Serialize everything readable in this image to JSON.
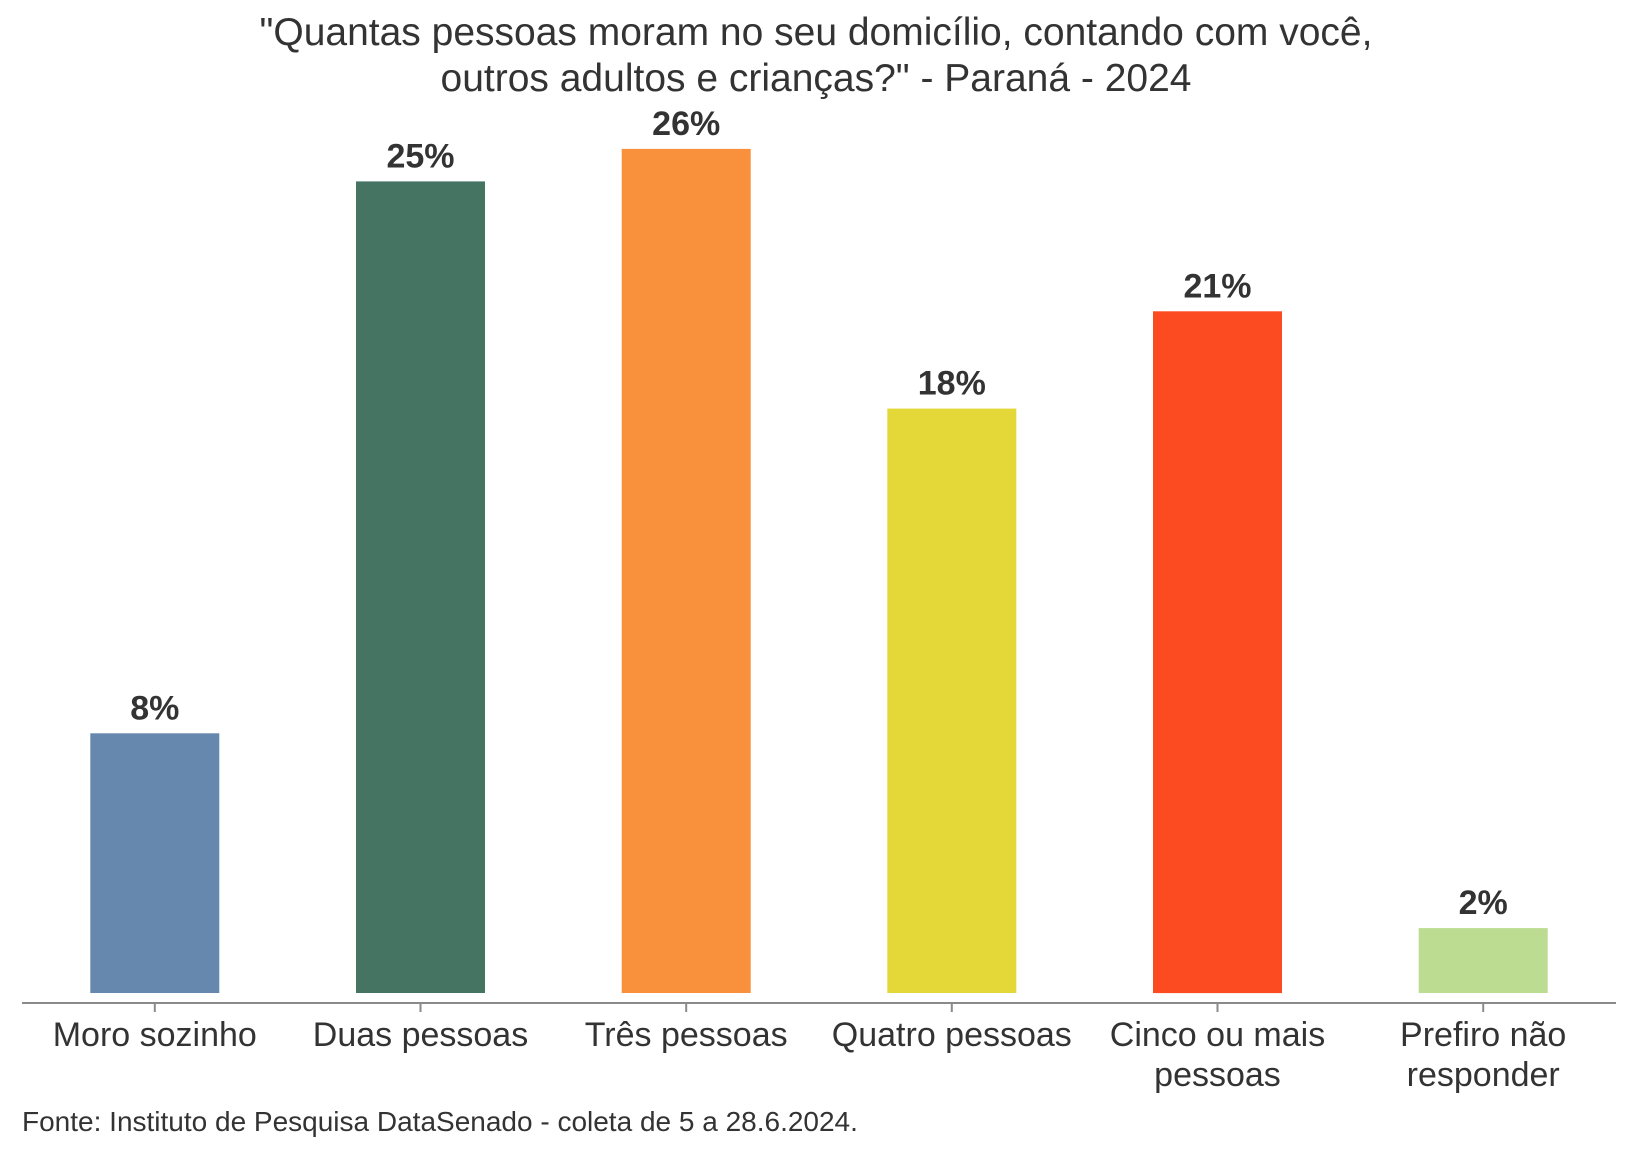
{
  "chart_data": {
    "type": "bar",
    "title_lines": [
      "\"Quantas pessoas moram no seu domicílio, contando com você,",
      "outros adultos e crianças?\" - Paraná - 2024"
    ],
    "categories": [
      [
        "Moro sozinho"
      ],
      [
        "Duas pessoas"
      ],
      [
        "Três pessoas"
      ],
      [
        "Quatro pessoas"
      ],
      [
        "Cinco ou mais",
        "pessoas"
      ],
      [
        "Prefiro não",
        "responder"
      ]
    ],
    "values": [
      8,
      25,
      26,
      18,
      21,
      2
    ],
    "value_labels": [
      "8%",
      "25%",
      "26%",
      "18%",
      "21%",
      "2%"
    ],
    "colors": [
      "#6688AE",
      "#467463",
      "#F8903C",
      "#E3D838",
      "#FC4A21",
      "#BBDC91"
    ],
    "ylim": [
      0,
      28
    ],
    "xlabel": "",
    "ylabel": "",
    "grid": false,
    "legend": "none",
    "source": "Fonte: Instituto de Pesquisa DataSenado - coleta de 5 a 28.6.2024."
  }
}
